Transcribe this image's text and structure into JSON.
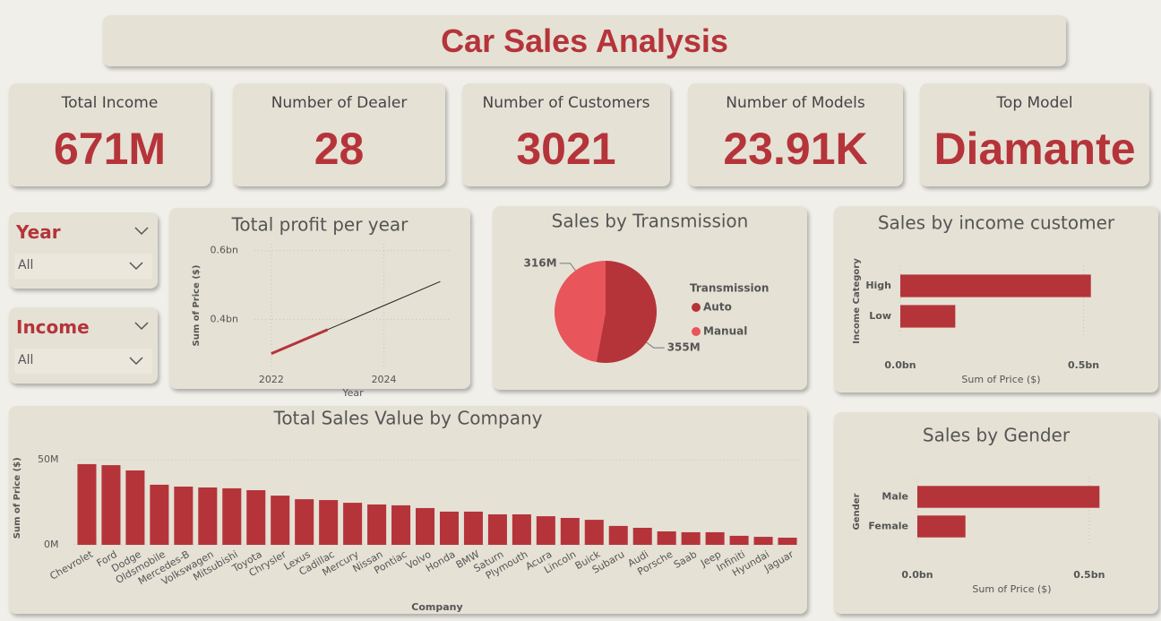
{
  "header": {
    "title": "Car Sales Analysis"
  },
  "kpis": [
    {
      "label": "Total Income",
      "value": "671M"
    },
    {
      "label": "Number of Dealer",
      "value": "28"
    },
    {
      "label": "Number of Customers",
      "value": "3021"
    },
    {
      "label": "Number of Models",
      "value": "23.91K"
    },
    {
      "label": "Top Model",
      "value": "Diamante"
    }
  ],
  "slicers": [
    {
      "title": "Year",
      "value": "All"
    },
    {
      "title": "Income",
      "value": "All"
    }
  ],
  "chart_data": [
    {
      "type": "line",
      "title": "Total profit per year",
      "xlabel": "Year",
      "ylabel": "Sum of Price ($)",
      "x": [
        2022,
        2023,
        2024,
        2025
      ],
      "series": [
        {
          "color": "#b5343a",
          "values": [
            0.3,
            0.37,
            null,
            null
          ]
        },
        {
          "color": "#222222",
          "values": [
            null,
            0.37,
            0.44,
            0.51
          ]
        }
      ],
      "xlim": [
        2021.7,
        2025.2
      ],
      "xticks": [
        2022,
        2024
      ],
      "ylim": [
        0.26,
        0.62
      ],
      "yticks": [
        {
          "value": 0.4,
          "label": "0.4bn"
        },
        {
          "value": 0.6,
          "label": "0.6bn"
        }
      ],
      "grid": true
    },
    {
      "type": "pie",
      "title": "Sales by Transmission",
      "legend_title": "Transmission",
      "categories": [
        "Auto",
        "Manual"
      ],
      "values": [
        355,
        316
      ],
      "value_labels": [
        "355M",
        "316M"
      ],
      "colors": [
        "#b5343a",
        "#e8555a"
      ]
    },
    {
      "type": "barh",
      "title": "Sales by income customer",
      "xlabel": "Sum of Price ($)",
      "ylabel": "Income Category",
      "categories": [
        "High",
        "Low"
      ],
      "values": [
        0.52,
        0.15
      ],
      "color": "#b5343a",
      "xlim": [
        0,
        0.55
      ],
      "xticks": [
        {
          "value": 0,
          "label": "0.0bn"
        },
        {
          "value": 0.5,
          "label": "0.5bn"
        }
      ],
      "grid": true
    },
    {
      "type": "bar",
      "title": "Total Sales Value by Company",
      "xlabel": "Company",
      "ylabel": "Sum of Price ($)",
      "categories": [
        "Chevrolet",
        "Ford",
        "Dodge",
        "Oldsmobile",
        "Mercedes-B",
        "Volkswagen",
        "Mitsubishi",
        "Toyota",
        "Chrysler",
        "Lexus",
        "Cadillac",
        "Mercury",
        "Nissan",
        "Pontiac",
        "Volvo",
        "Honda",
        "BMW",
        "Saturn",
        "Plymouth",
        "Acura",
        "Lincoln",
        "Buick",
        "Subaru",
        "Audi",
        "Porsche",
        "Saab",
        "Jeep",
        "Infiniti",
        "Hyundai",
        "Jaguar"
      ],
      "values": [
        47.4,
        46.8,
        43.7,
        35.3,
        34.2,
        33.7,
        33.2,
        32.1,
        28.9,
        26.8,
        26.3,
        24.7,
        23.7,
        23.2,
        21.6,
        19.5,
        19.5,
        17.9,
        17.9,
        16.8,
        15.8,
        14.7,
        11.1,
        10.0,
        7.9,
        7.4,
        7.4,
        5.3,
        4.7,
        4.2
      ],
      "color": "#b5343a",
      "ylim": [
        0,
        55
      ],
      "yticks": [
        {
          "value": 0,
          "label": "0M"
        },
        {
          "value": 50,
          "label": "50M"
        }
      ],
      "grid": true
    },
    {
      "type": "barh",
      "title": "Sales by Gender",
      "xlabel": "Sum of Price ($)",
      "ylabel": "Gender",
      "categories": [
        "Male",
        "Female"
      ],
      "values": [
        0.53,
        0.14
      ],
      "color": "#b5343a",
      "xlim": [
        0,
        0.55
      ],
      "xticks": [
        {
          "value": 0,
          "label": "0.0bn"
        },
        {
          "value": 0.5,
          "label": "0.5bn"
        }
      ],
      "grid": true
    }
  ]
}
